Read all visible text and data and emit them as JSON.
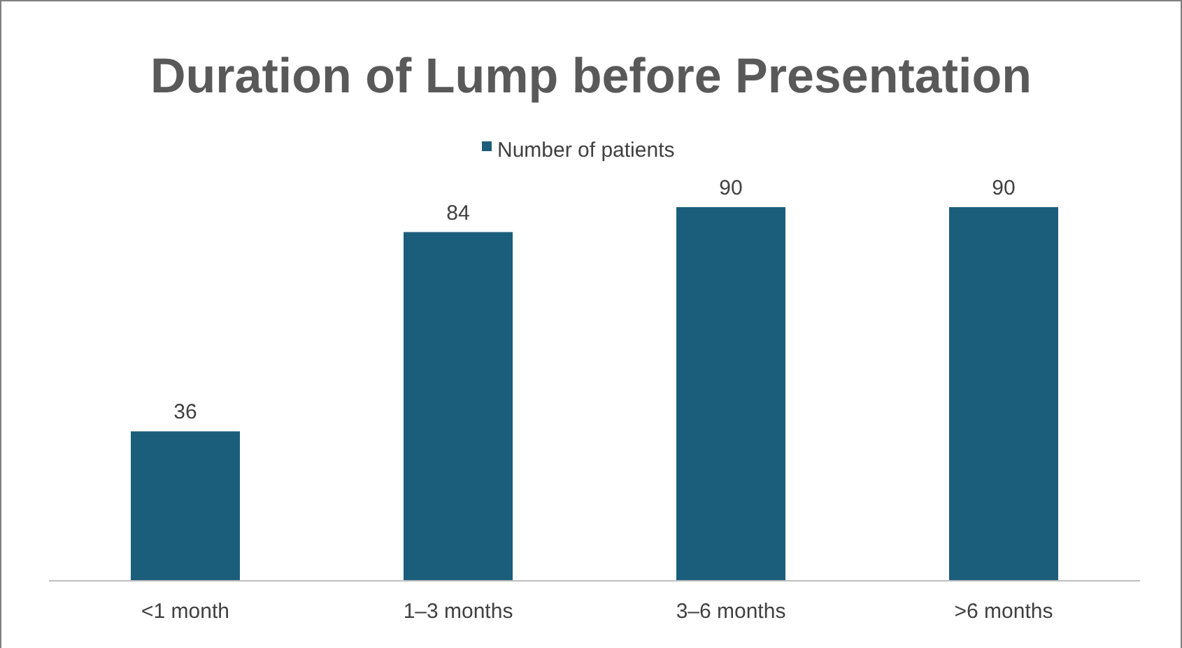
{
  "chart_data": {
    "type": "bar",
    "title": "Duration of Lump before Presentation",
    "categories": [
      "<1 month",
      "1–3 months",
      "3–6 months",
      ">6 months"
    ],
    "series": [
      {
        "name": "Number of patients",
        "color": "#1b5e7b",
        "values": [
          36,
          84,
          90,
          90
        ]
      }
    ],
    "data_labels": true,
    "legend": "top"
  }
}
